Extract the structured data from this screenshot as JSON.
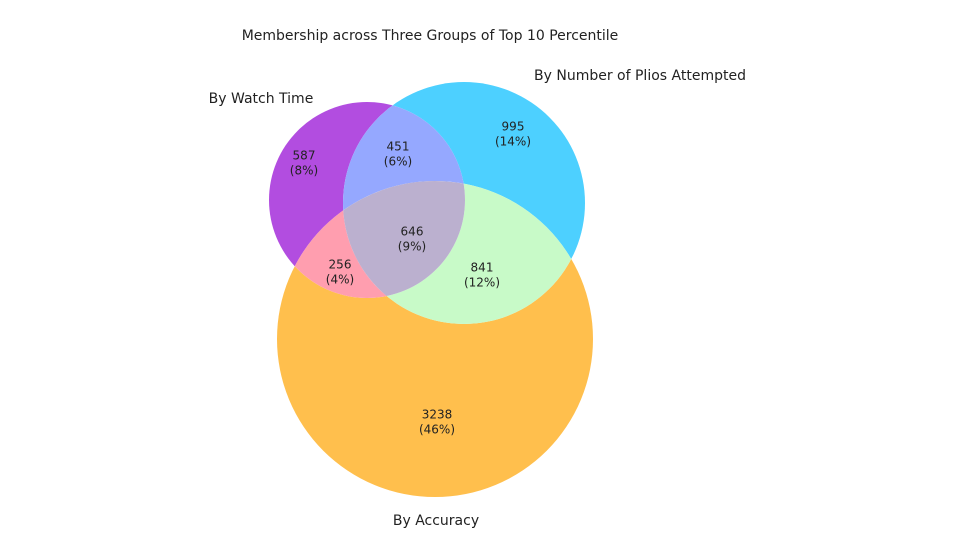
{
  "chart_data": {
    "type": "venn",
    "title": "Membership across Three Groups of Top 10 Percentile",
    "sets": [
      {
        "name": "By Watch Time"
      },
      {
        "name": "By Number of Plios Attempted"
      },
      {
        "name": "By Accuracy"
      }
    ],
    "regions": [
      {
        "sets": [
          0
        ],
        "value": 587,
        "percent": 8,
        "percent_label": "(8%)",
        "color": "#b24de0"
      },
      {
        "sets": [
          1
        ],
        "value": 995,
        "percent": 14,
        "percent_label": "(14%)",
        "color": "#4dd0ff"
      },
      {
        "sets": [
          0,
          1
        ],
        "value": 451,
        "percent": 6,
        "percent_label": "(6%)",
        "color": "#95a8ff"
      },
      {
        "sets": [
          2
        ],
        "value": 3238,
        "percent": 46,
        "percent_label": "(46%)",
        "color": "#ffbf4d"
      },
      {
        "sets": [
          0,
          2
        ],
        "value": 256,
        "percent": 4,
        "percent_label": "(4%)",
        "color": "#ff9eaf"
      },
      {
        "sets": [
          1,
          2
        ],
        "value": 841,
        "percent": 12,
        "percent_label": "(12%)",
        "color": "#c8fac8"
      },
      {
        "sets": [
          0,
          1,
          2
        ],
        "value": 646,
        "percent": 9,
        "percent_label": "(9%)",
        "color": "#bbb0cf"
      }
    ]
  }
}
